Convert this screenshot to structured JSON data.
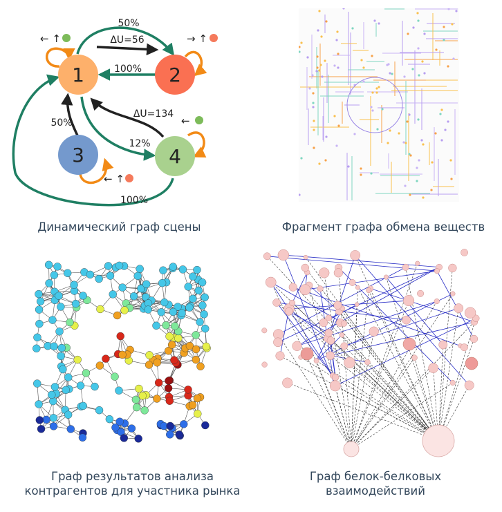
{
  "captions": {
    "scene": "Динамический граф сцены",
    "metabolism": "Фрагмент графа обмена веществ",
    "contractors_line1": "Граф результатов анализа",
    "contractors_line2": "контрагентов для участника рынка",
    "ppi_line1": "Граф белок-белковых",
    "ppi_line2": "взаимодействий"
  },
  "scene_graph": {
    "nodes": [
      {
        "label": "1",
        "color": "#fdb06b"
      },
      {
        "label": "2",
        "color": "#fa7052"
      },
      {
        "label": "3",
        "color": "#7499cd"
      },
      {
        "label": "4",
        "color": "#a9d18e"
      }
    ],
    "edge_labels": {
      "e12_top": "50%",
      "e12_delta": "ΔU=56",
      "e21": "100%",
      "e31": "50%",
      "e41_delta": "ΔU=134",
      "e14": "12%",
      "e41_bottom": "100%"
    },
    "self_loop_markers": {
      "n1": "← ↑",
      "n2": "→ ↑",
      "n3": "← ↑",
      "n4": "←"
    },
    "colors": {
      "green_edge": "#1f7f63",
      "black_edge": "#222222",
      "self_loop": "#f28a16",
      "green_dot": "#7dbb5a",
      "red_dot": "#f57a5c"
    }
  },
  "colors": {
    "caption": "#33475b",
    "metabolism_lines": [
      "#f9c04e",
      "#b79ef0",
      "#7fd6c0",
      "#f7a24a",
      "#c8b3f5"
    ],
    "heat": [
      "#1a2a99",
      "#2d6ee8",
      "#45c7e8",
      "#7ee89a",
      "#e6f04a",
      "#f0a020",
      "#d8281a",
      "#9b1010"
    ],
    "ppi_edge_blue": "#2a2fc6",
    "ppi_edge_dash": "#333333",
    "ppi_node": "#f6c8c6"
  }
}
